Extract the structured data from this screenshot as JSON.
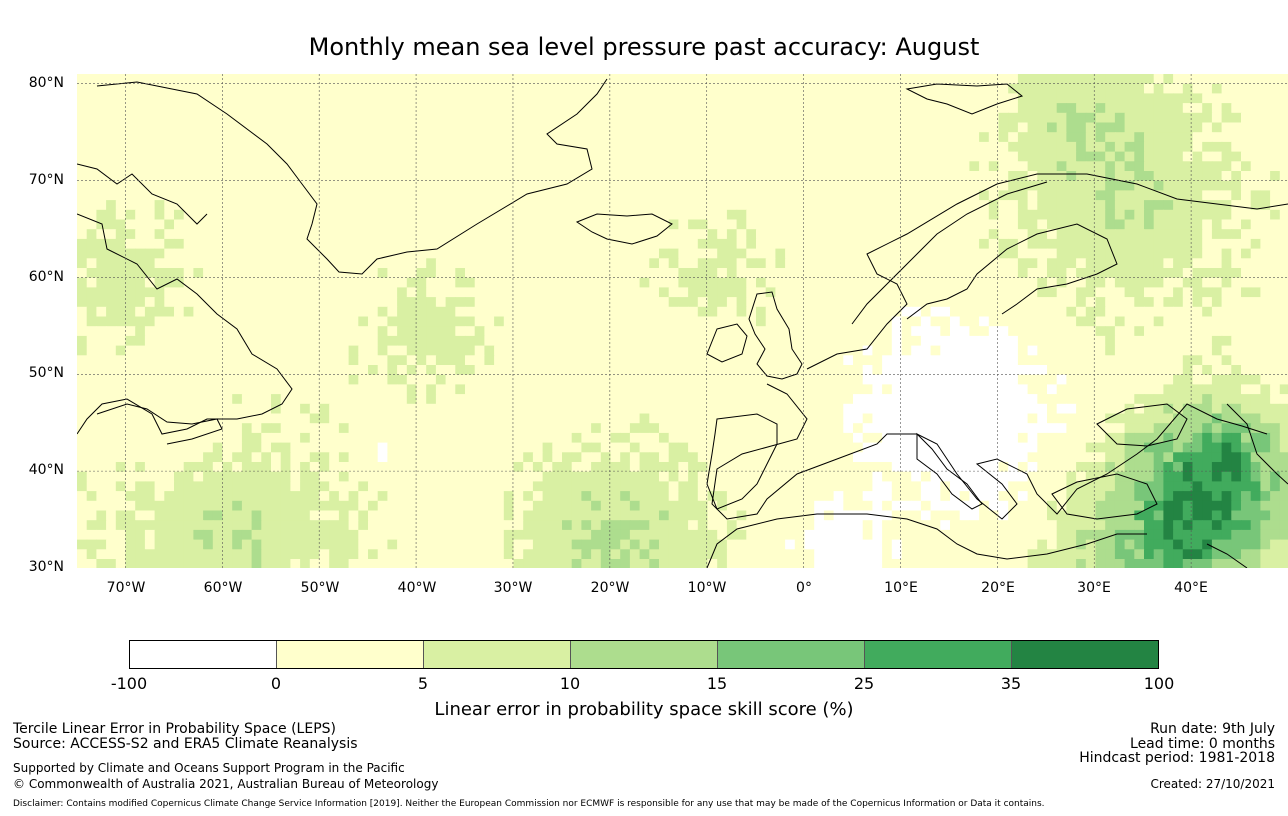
{
  "title": "Monthly mean sea level pressure past accuracy: August",
  "map": {
    "lat_labels": [
      "80°N",
      "70°N",
      "60°N",
      "50°N",
      "40°N",
      "30°N"
    ],
    "lon_labels": [
      "70°W",
      "60°W",
      "50°W",
      "40°W",
      "30°W",
      "20°W",
      "10°W",
      "0°",
      "10°E",
      "20°E",
      "30°E",
      "40°E"
    ],
    "lat_range": [
      30,
      81
    ],
    "lon_range": [
      -75,
      50
    ],
    "gridlines": true,
    "coastline_color": "#000000"
  },
  "colorbar": {
    "ticks": [
      "-100",
      "0",
      "5",
      "10",
      "15",
      "25",
      "35",
      "100"
    ],
    "colors": [
      "#ffffff",
      "#ffffcc",
      "#d9f0a3",
      "#addd8e",
      "#78c679",
      "#41ab5d",
      "#238443"
    ],
    "label": "Linear error in probability space skill score (%)"
  },
  "footer": {
    "left": {
      "line1": "Tercile Linear Error in Probability Space (LEPS)",
      "line2": "Source: ACCESS-S2 and ERA5 Climate Reanalysis",
      "line3": "Supported by Climate and Oceans Support Program in the Pacific",
      "line4": "© Commonwealth of Australia 2021, Australian Bureau of Meteorology"
    },
    "right": {
      "run_date": "Run date: 9th July",
      "lead_time": "Lead time: 0 months",
      "hindcast": "Hindcast period: 1981-2018",
      "created": "Created: 27/10/2021"
    },
    "disclaimer": "Disclaimer: Contains modified Copernicus Climate Change Service Information [2019]. Neither the European Commission nor ECMWF is responsible for any use that may be made of the Copernicus Information or Data it contains."
  }
}
